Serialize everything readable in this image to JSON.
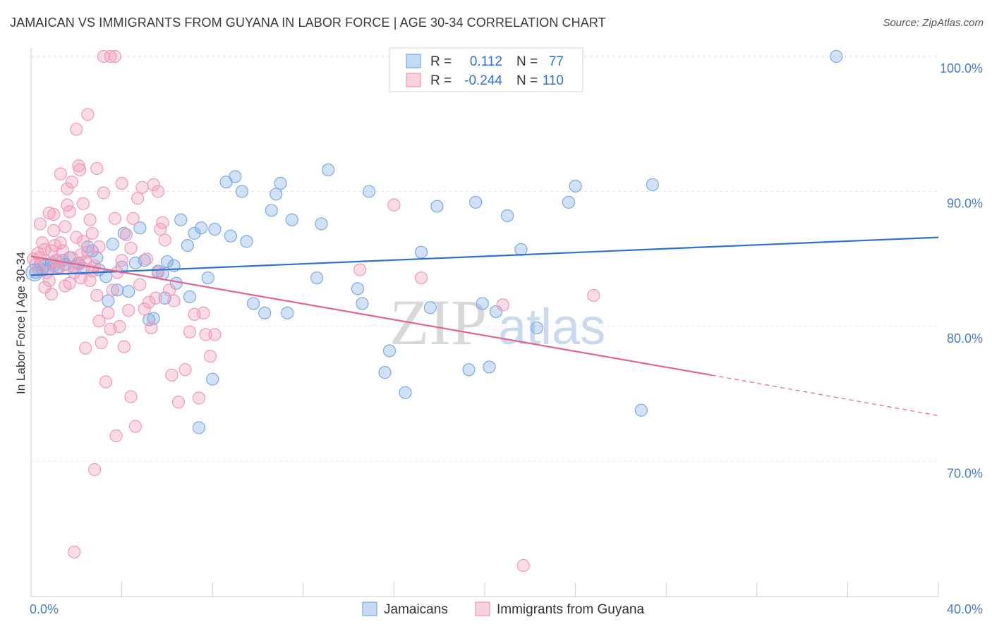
{
  "title": "JAMAICAN VS IMMIGRANTS FROM GUYANA IN LABOR FORCE | AGE 30-34 CORRELATION CHART",
  "source": "Source: ZipAtlas.com",
  "watermark": {
    "zip": "ZIP",
    "atlas": "atlas"
  },
  "chart_data": {
    "type": "scatter",
    "ylabel": "In Labor Force | Age 30-34",
    "xlim": [
      0,
      40
    ],
    "ylim": [
      60,
      100
    ],
    "x_tick_labels": [
      "0.0%",
      "40.0%"
    ],
    "y_ticks": [
      70,
      80,
      90,
      100
    ],
    "y_tick_labels": [
      "70.0%",
      "80.0%",
      "90.0%",
      "100.0%"
    ],
    "grid": true,
    "legend_position": "top-center",
    "stats": [
      {
        "r_label": "R =",
        "r_value": "0.112",
        "n_label": "N =",
        "n_value": "77"
      },
      {
        "r_label": "R =",
        "r_value": "-0.244",
        "n_label": "N =",
        "n_value": "110"
      }
    ],
    "series": [
      {
        "name": "Jamaicans",
        "color": "#7aaae6",
        "line_color": "#2f72cc",
        "trend": {
          "x": [
            0,
            40
          ],
          "y": [
            83.8,
            86.6
          ]
        },
        "points": [
          [
            0.2,
            84.0
          ],
          [
            0.4,
            84.6
          ],
          [
            0.5,
            84.2
          ],
          [
            0.6,
            84.5
          ],
          [
            0.8,
            84.3
          ],
          [
            0.9,
            84.7
          ],
          [
            1.0,
            84.5
          ],
          [
            1.2,
            84.4
          ],
          [
            1.4,
            84.9
          ],
          [
            1.5,
            84.6
          ],
          [
            1.7,
            85.1
          ],
          [
            1.9,
            84.4
          ],
          [
            2.1,
            84.7
          ],
          [
            2.3,
            84.3
          ],
          [
            2.5,
            85.9
          ],
          [
            2.7,
            85.6
          ],
          [
            2.9,
            85.1
          ],
          [
            3.0,
            84.2
          ],
          [
            3.3,
            83.7
          ],
          [
            3.4,
            81.9
          ],
          [
            3.6,
            86.1
          ],
          [
            3.8,
            82.7
          ],
          [
            4.0,
            84.4
          ],
          [
            4.1,
            86.9
          ],
          [
            4.3,
            82.6
          ],
          [
            4.6,
            84.7
          ],
          [
            4.8,
            87.3
          ],
          [
            5.0,
            84.9
          ],
          [
            5.2,
            80.5
          ],
          [
            5.4,
            80.6
          ],
          [
            5.6,
            84.1
          ],
          [
            5.8,
            83.9
          ],
          [
            5.9,
            82.1
          ],
          [
            6.0,
            84.8
          ],
          [
            6.3,
            84.5
          ],
          [
            6.4,
            83.2
          ],
          [
            6.6,
            87.9
          ],
          [
            6.9,
            86.0
          ],
          [
            7.0,
            82.2
          ],
          [
            7.2,
            86.9
          ],
          [
            7.4,
            72.5
          ],
          [
            7.5,
            87.3
          ],
          [
            7.8,
            83.6
          ],
          [
            8.0,
            76.1
          ],
          [
            8.1,
            87.2
          ],
          [
            8.6,
            90.7
          ],
          [
            8.8,
            86.7
          ],
          [
            9.0,
            91.1
          ],
          [
            9.3,
            90.0
          ],
          [
            9.5,
            86.3
          ],
          [
            9.8,
            81.7
          ],
          [
            10.3,
            81.0
          ],
          [
            10.6,
            88.6
          ],
          [
            10.8,
            89.8
          ],
          [
            11.0,
            90.6
          ],
          [
            11.3,
            81.0
          ],
          [
            11.5,
            87.9
          ],
          [
            12.6,
            83.6
          ],
          [
            12.8,
            87.6
          ],
          [
            13.1,
            91.6
          ],
          [
            14.4,
            82.8
          ],
          [
            14.6,
            81.7
          ],
          [
            14.9,
            90.0
          ],
          [
            15.6,
            76.6
          ],
          [
            15.8,
            78.2
          ],
          [
            16.5,
            75.1
          ],
          [
            17.2,
            85.5
          ],
          [
            17.6,
            81.4
          ],
          [
            17.9,
            88.9
          ],
          [
            19.3,
            76.8
          ],
          [
            19.6,
            89.2
          ],
          [
            19.9,
            81.7
          ],
          [
            20.2,
            77.0
          ],
          [
            20.5,
            81.1
          ],
          [
            21.0,
            88.2
          ],
          [
            21.6,
            85.7
          ],
          [
            22.3,
            79.9
          ],
          [
            23.7,
            89.2
          ],
          [
            24.0,
            90.4
          ],
          [
            26.9,
            73.8
          ],
          [
            27.4,
            90.5
          ],
          [
            35.5,
            100.0
          ]
        ]
      },
      {
        "name": "Immigrants from Guyana",
        "color": "#f09ab8",
        "line_color": "#e0648f",
        "trend": {
          "x": [
            0,
            30
          ],
          "y": [
            85.2,
            76.4
          ]
        },
        "trend_dashed": {
          "x": [
            30,
            40
          ],
          "y": [
            76.4,
            73.4
          ]
        },
        "points": [
          [
            0.1,
            85.0
          ],
          [
            0.2,
            84.6
          ],
          [
            0.3,
            85.4
          ],
          [
            0.35,
            84.2
          ],
          [
            0.4,
            85.1
          ],
          [
            0.5,
            86.2
          ],
          [
            0.6,
            85.7
          ],
          [
            0.7,
            84.0
          ],
          [
            0.8,
            83.4
          ],
          [
            0.9,
            85.6
          ],
          [
            1.0,
            87.1
          ],
          [
            1.05,
            86.0
          ],
          [
            1.1,
            84.9
          ],
          [
            1.2,
            84.3
          ],
          [
            1.3,
            86.2
          ],
          [
            1.4,
            85.6
          ],
          [
            1.5,
            87.4
          ],
          [
            1.6,
            84.3
          ],
          [
            1.7,
            83.2
          ],
          [
            1.8,
            85.1
          ],
          [
            1.9,
            84.0
          ],
          [
            2.0,
            86.6
          ],
          [
            2.1,
            84.6
          ],
          [
            2.2,
            83.6
          ],
          [
            2.3,
            86.3
          ],
          [
            2.4,
            84.8
          ],
          [
            2.5,
            85.5
          ],
          [
            2.6,
            83.4
          ],
          [
            2.7,
            84.1
          ],
          [
            2.8,
            84.5
          ],
          [
            1.6,
            90.2
          ],
          [
            1.7,
            88.5
          ],
          [
            1.8,
            90.7
          ],
          [
            1.9,
            63.3
          ],
          [
            2.0,
            94.6
          ],
          [
            2.1,
            91.9
          ],
          [
            2.15,
            91.6
          ],
          [
            2.3,
            89.1
          ],
          [
            2.4,
            78.4
          ],
          [
            2.5,
            95.7
          ],
          [
            2.6,
            87.9
          ],
          [
            2.8,
            69.4
          ],
          [
            2.9,
            82.3
          ],
          [
            3.0,
            80.4
          ],
          [
            3.1,
            78.8
          ],
          [
            3.2,
            89.9
          ],
          [
            3.3,
            75.9
          ],
          [
            3.4,
            81.0
          ],
          [
            3.5,
            79.8
          ],
          [
            3.6,
            82.7
          ],
          [
            3.7,
            88.0
          ],
          [
            3.75,
            71.9
          ],
          [
            3.8,
            84.0
          ],
          [
            3.9,
            80.0
          ],
          [
            4.0,
            90.6
          ],
          [
            4.1,
            78.5
          ],
          [
            4.2,
            86.8
          ],
          [
            4.3,
            81.2
          ],
          [
            4.4,
            74.8
          ],
          [
            4.5,
            88.0
          ],
          [
            4.6,
            72.6
          ],
          [
            4.7,
            89.5
          ],
          [
            4.8,
            83.1
          ],
          [
            4.9,
            90.3
          ],
          [
            5.0,
            81.3
          ],
          [
            5.1,
            85.0
          ],
          [
            5.2,
            81.8
          ],
          [
            5.3,
            79.9
          ],
          [
            5.4,
            90.5
          ],
          [
            5.5,
            82.1
          ],
          [
            5.6,
            90.0
          ],
          [
            5.7,
            87.2
          ],
          [
            5.8,
            87.7
          ],
          [
            5.9,
            86.4
          ],
          [
            6.1,
            82.7
          ],
          [
            6.2,
            76.4
          ],
          [
            6.3,
            81.9
          ],
          [
            6.5,
            74.4
          ],
          [
            6.8,
            76.8
          ],
          [
            7.0,
            79.6
          ],
          [
            7.2,
            80.9
          ],
          [
            7.4,
            74.7
          ],
          [
            7.6,
            81.0
          ],
          [
            7.7,
            79.4
          ],
          [
            7.9,
            77.8
          ],
          [
            8.1,
            79.4
          ],
          [
            3.2,
            100.0
          ],
          [
            3.5,
            100.0
          ],
          [
            3.7,
            100.0
          ],
          [
            14.5,
            84.2
          ],
          [
            16.0,
            89.0
          ],
          [
            17.2,
            83.6
          ],
          [
            20.8,
            81.6
          ],
          [
            21.7,
            62.3
          ],
          [
            24.8,
            82.3
          ],
          [
            0.8,
            88.4
          ],
          [
            1.3,
            91.3
          ],
          [
            2.9,
            91.7
          ],
          [
            0.6,
            82.9
          ],
          [
            1.1,
            84.8
          ],
          [
            1.5,
            83.0
          ],
          [
            2.2,
            85.3
          ],
          [
            3.0,
            85.9
          ],
          [
            4.0,
            84.9
          ],
          [
            4.4,
            85.8
          ],
          [
            5.6,
            84.0
          ],
          [
            1.0,
            88.3
          ],
          [
            0.4,
            87.6
          ],
          [
            1.6,
            89.0
          ],
          [
            2.7,
            86.9
          ],
          [
            0.9,
            82.4
          ]
        ]
      }
    ]
  }
}
